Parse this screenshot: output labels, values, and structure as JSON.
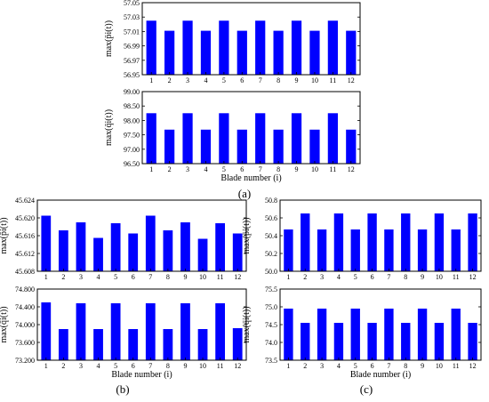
{
  "figure": {
    "panel_labels": [
      "(a)",
      "(b)",
      "(c)"
    ]
  },
  "chart_data": [
    {
      "type": "bar",
      "panel": "(a)",
      "position": "top",
      "categories": [
        "1",
        "2",
        "3",
        "4",
        "5",
        "6",
        "7",
        "8",
        "9",
        "10",
        "11",
        "12"
      ],
      "values": [
        57.025,
        57.011,
        57.025,
        57.011,
        57.025,
        57.011,
        57.025,
        57.011,
        57.025,
        57.011,
        57.025,
        57.011
      ],
      "ylabel": "max(p̄i(t))",
      "xlabel": "",
      "ylim": [
        56.95,
        57.05
      ],
      "yticks": [
        "56.95",
        "56.97",
        "56.99",
        "57.01",
        "57.03",
        "57.05"
      ],
      "bar_color": "#0000ff",
      "grid": false
    },
    {
      "type": "bar",
      "panel": "(a)",
      "position": "bottom",
      "categories": [
        "1",
        "2",
        "3",
        "4",
        "5",
        "6",
        "7",
        "8",
        "9",
        "10",
        "11",
        "12"
      ],
      "values": [
        98.25,
        97.68,
        98.25,
        97.68,
        98.25,
        97.68,
        98.25,
        97.68,
        98.25,
        97.68,
        98.25,
        97.68
      ],
      "ylabel": "max(q̄i(t))",
      "xlabel": "Blade number (i)",
      "ylim": [
        96.5,
        99.0
      ],
      "yticks": [
        "96.50",
        "97.00",
        "97.50",
        "98.00",
        "98.50",
        "99.00"
      ],
      "bar_color": "#0000ff",
      "grid": false
    },
    {
      "type": "bar",
      "panel": "(b)",
      "position": "top",
      "categories": [
        "1",
        "2",
        "3",
        "4",
        "5",
        "6",
        "7",
        "8",
        "9",
        "10",
        "11",
        "12"
      ],
      "values": [
        45.6205,
        45.6172,
        45.619,
        45.6155,
        45.6188,
        45.6165,
        45.6205,
        45.6172,
        45.619,
        45.6153,
        45.6188,
        45.6165
      ],
      "ylabel": "max(p̄i(t))",
      "xlabel": "",
      "ylim": [
        45.608,
        45.624
      ],
      "yticks": [
        "45.608",
        "45.612",
        "45.616",
        "45.620",
        "45.624"
      ],
      "bar_color": "#0000ff",
      "grid": false
    },
    {
      "type": "bar",
      "panel": "(b)",
      "position": "bottom",
      "categories": [
        "1",
        "2",
        "3",
        "4",
        "5",
        "6",
        "7",
        "8",
        "9",
        "10",
        "11",
        "12"
      ],
      "values": [
        74.5,
        73.9,
        74.48,
        73.9,
        74.48,
        73.9,
        74.48,
        73.9,
        74.48,
        73.9,
        74.48,
        73.92
      ],
      "ylabel": "max(q̄i(t))",
      "xlabel": "Blade number (i)",
      "ylim": [
        73.2,
        74.8
      ],
      "yticks": [
        "73.200",
        "73.600",
        "74.000",
        "74.400",
        "74.800"
      ],
      "bar_color": "#0000ff",
      "grid": false
    },
    {
      "type": "bar",
      "panel": "(c)",
      "position": "top",
      "categories": [
        "1",
        "2",
        "3",
        "4",
        "5",
        "6",
        "7",
        "8",
        "9",
        "10",
        "11",
        "12"
      ],
      "values": [
        50.47,
        50.65,
        50.47,
        50.65,
        50.47,
        50.65,
        50.47,
        50.65,
        50.47,
        50.65,
        50.47,
        50.65
      ],
      "ylabel": "max(p̄i(t))",
      "xlabel": "",
      "ylim": [
        50.0,
        50.8
      ],
      "yticks": [
        "50.0",
        "50.2",
        "50.4",
        "50.6",
        "50.8"
      ],
      "bar_color": "#0000ff",
      "grid": false
    },
    {
      "type": "bar",
      "panel": "(c)",
      "position": "bottom",
      "categories": [
        "1",
        "2",
        "3",
        "4",
        "5",
        "6",
        "7",
        "8",
        "9",
        "10",
        "11",
        "12"
      ],
      "values": [
        74.95,
        74.55,
        74.95,
        74.55,
        74.95,
        74.55,
        74.95,
        74.55,
        74.95,
        74.55,
        74.95,
        74.55
      ],
      "ylabel": "max(q̄i(t))",
      "xlabel": "Blade number (i)",
      "ylim": [
        73.5,
        75.5
      ],
      "yticks": [
        "73.5",
        "74.0",
        "74.5",
        "75.0",
        "75.5"
      ],
      "bar_color": "#0000ff",
      "grid": false
    }
  ]
}
